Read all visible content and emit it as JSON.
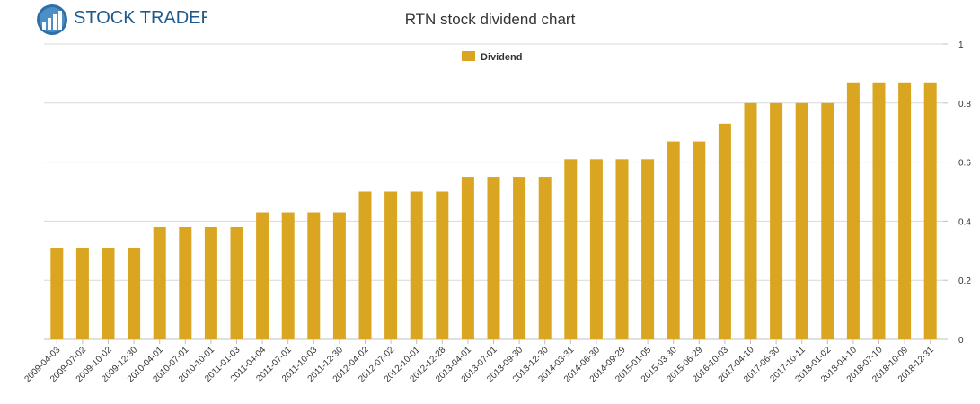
{
  "logo": {
    "text": "STOCK TRADERS"
  },
  "chart_data": {
    "type": "bar",
    "title": "RTN stock dividend chart",
    "xlabel": "",
    "ylabel": "",
    "ylim": [
      0,
      1
    ],
    "yticks": [
      "0",
      "0.2",
      "0.4",
      "0.6",
      "0.8",
      "1"
    ],
    "grid": true,
    "legend_position": "top-center",
    "colors": {
      "bar": "#DAA520",
      "grid": "#d9d9d9",
      "axis": "#c0c0c0"
    },
    "series": [
      {
        "name": "Dividend",
        "values": [
          0.31,
          0.31,
          0.31,
          0.31,
          0.38,
          0.38,
          0.38,
          0.38,
          0.43,
          0.43,
          0.43,
          0.43,
          0.5,
          0.5,
          0.5,
          0.5,
          0.55,
          0.55,
          0.55,
          0.55,
          0.61,
          0.61,
          0.61,
          0.61,
          0.67,
          0.67,
          0.73,
          0.8,
          0.8,
          0.8,
          0.8,
          0.87,
          0.87,
          0.87,
          0.87
        ]
      }
    ],
    "categories": [
      "2009-04-03",
      "2009-07-02",
      "2009-10-02",
      "2009-12-30",
      "2010-04-01",
      "2010-07-01",
      "2010-10-01",
      "2011-01-03",
      "2011-04-04",
      "2011-07-01",
      "2011-10-03",
      "2011-12-30",
      "2012-04-02",
      "2012-07-02",
      "2012-10-01",
      "2012-12-28",
      "2013-04-01",
      "2013-07-01",
      "2013-09-30",
      "2013-12-30",
      "2014-03-31",
      "2014-06-30",
      "2014-09-29",
      "2015-01-05",
      "2015-03-30",
      "2015-06-29",
      "2016-10-03",
      "2017-04-10",
      "2017-06-30",
      "2017-10-11",
      "2018-01-02",
      "2018-04-10",
      "2018-07-10",
      "2018-10-09",
      "2018-12-31"
    ]
  }
}
